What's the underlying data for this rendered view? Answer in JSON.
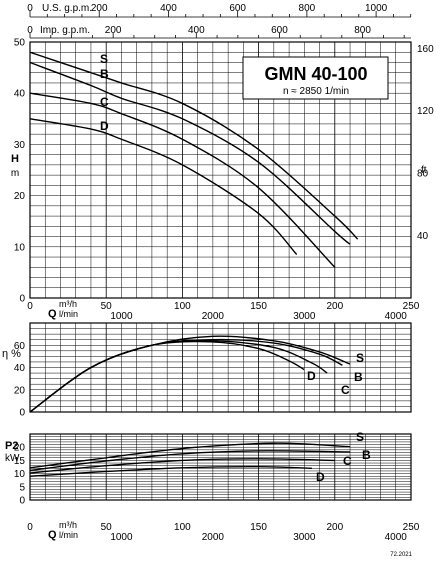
{
  "chart_data": [
    {
      "type": "line",
      "panel": "head",
      "title": "GMN 40-100",
      "subtitle": "n ≈ 2850 1/min",
      "ylabel": "H",
      "ylabel_unit": "m",
      "y2label": "ft",
      "ylim": [
        0,
        50
      ],
      "yticks": [
        0,
        10,
        20,
        30,
        40,
        50
      ],
      "y2ticks": [
        40,
        80,
        120,
        160
      ],
      "xlim": [
        0,
        250
      ],
      "xticks": [
        0,
        50,
        100,
        150,
        200,
        250
      ],
      "xunit": "m³/h",
      "xlabel": "Q",
      "xlabel2_unit": "l/min",
      "x_lmin_ticks": [
        1000,
        2000,
        3000,
        4000
      ],
      "top_axis_usgpm_label": "U.S. g.p.m.",
      "top_axis_usgpm_ticks": [
        0,
        200,
        400,
        600,
        800,
        1000
      ],
      "top_axis_imp_label": "Imp. g.p.m.",
      "top_axis_imp_ticks": [
        0,
        200,
        400,
        600,
        800
      ],
      "series": [
        {
          "name": "S",
          "x": [
            0,
            40,
            60,
            100,
            150,
            200,
            215
          ],
          "y": [
            48,
            44,
            42,
            38,
            29,
            16,
            11.5
          ]
        },
        {
          "name": "B",
          "x": [
            0,
            40,
            60,
            100,
            150,
            200,
            210
          ],
          "y": [
            46,
            41.5,
            39,
            35,
            26.5,
            13,
            10.5
          ]
        },
        {
          "name": "C",
          "x": [
            0,
            40,
            60,
            100,
            150,
            200
          ],
          "y": [
            40,
            38,
            36,
            31,
            21.5,
            6
          ]
        },
        {
          "name": "D",
          "x": [
            0,
            40,
            60,
            100,
            150,
            175
          ],
          "y": [
            35,
            33,
            31,
            26,
            16.5,
            8.5
          ]
        }
      ]
    },
    {
      "type": "line",
      "panel": "efficiency",
      "ylabel": "η %",
      "ylim": [
        0,
        80
      ],
      "yticks": [
        0,
        20,
        40,
        60
      ],
      "xlim": [
        0,
        250
      ],
      "xticks": [
        0,
        50,
        100,
        150,
        200,
        250
      ],
      "xlabel": "Q",
      "xunit": "m³/h",
      "xlabel2_unit": "l/min",
      "x_lmin_ticks": [
        1000,
        2000,
        3000,
        4000
      ],
      "series": [
        {
          "name": "S",
          "x": [
            0,
            40,
            80,
            120,
            160,
            190,
            210
          ],
          "y": [
            0,
            40,
            60,
            68,
            64,
            54,
            43
          ]
        },
        {
          "name": "B",
          "x": [
            0,
            40,
            80,
            120,
            160,
            190,
            205
          ],
          "y": [
            0,
            40,
            60,
            65,
            62,
            52,
            42
          ]
        },
        {
          "name": "C",
          "x": [
            0,
            40,
            80,
            120,
            160,
            185,
            195
          ],
          "y": [
            0,
            40,
            60,
            64,
            58,
            44,
            35
          ]
        },
        {
          "name": "D",
          "x": [
            0,
            40,
            80,
            120,
            150,
            170,
            180
          ],
          "y": [
            0,
            40,
            60,
            63,
            57,
            46,
            38
          ]
        }
      ]
    },
    {
      "type": "line",
      "panel": "power",
      "ylabel": "P2",
      "ylabel_unit": "kW",
      "ylim": [
        0,
        25
      ],
      "yticks": [
        0,
        5,
        10,
        15,
        20
      ],
      "xlim": [
        0,
        250
      ],
      "xticks": [
        0,
        50,
        100,
        150,
        200,
        250
      ],
      "xlabel": "Q",
      "xunit": "m³/h",
      "xlabel2_unit": "l/min",
      "x_lmin_ticks": [
        1000,
        2000,
        3000,
        4000
      ],
      "series": [
        {
          "name": "S",
          "x": [
            0,
            50,
            100,
            160,
            210
          ],
          "y": [
            12.2,
            16,
            19.5,
            21.5,
            20.2
          ]
        },
        {
          "name": "B",
          "x": [
            0,
            50,
            100,
            150,
            210
          ],
          "y": [
            11.2,
            14.8,
            17.5,
            18.6,
            18.2
          ]
        },
        {
          "name": "C",
          "x": [
            0,
            50,
            100,
            150,
            200
          ],
          "y": [
            10.2,
            13,
            15,
            15.6,
            15
          ]
        },
        {
          "name": "D",
          "x": [
            0,
            50,
            100,
            150,
            185
          ],
          "y": [
            9,
            10.8,
            12.2,
            12.6,
            12
          ]
        }
      ]
    }
  ],
  "footer_code": "72.2021"
}
